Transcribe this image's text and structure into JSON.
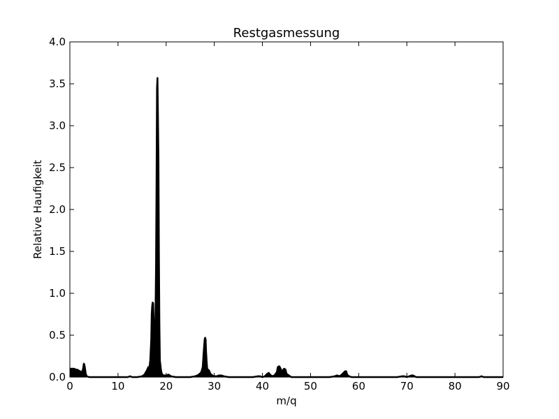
{
  "chart_data": {
    "type": "line",
    "title": "Restgasmessung",
    "xlabel": "m/q",
    "ylabel": "Relative Haufigkeit",
    "xlim": [
      0,
      90
    ],
    "ylim": [
      0,
      4.0
    ],
    "xticks": [
      "0",
      "10",
      "20",
      "30",
      "40",
      "50",
      "60",
      "70",
      "80",
      "90"
    ],
    "yticks": [
      "0.0",
      "0.5",
      "1.0",
      "1.5",
      "2.0",
      "2.5",
      "3.0",
      "3.5",
      "4.0"
    ],
    "grid": false,
    "legend": "none",
    "series_color": "#000000",
    "series": [
      {
        "x": [
          0.0,
          0.3,
          0.6,
          0.9,
          1.2,
          1.5,
          1.8,
          2.1,
          2.4,
          2.7,
          2.8,
          2.9,
          3.0,
          3.1,
          3.2,
          3.3,
          3.5,
          4.0,
          5.0,
          8.0,
          10.0,
          12.0,
          12.5,
          13.0,
          14.0,
          15.0,
          15.5,
          16.0,
          16.3,
          16.5,
          16.7,
          16.9,
          17.0,
          17.1,
          17.2,
          17.3,
          17.4,
          17.5,
          17.6,
          17.7,
          17.8,
          17.9,
          18.0,
          18.1,
          18.2,
          18.3,
          18.4,
          18.5,
          18.6,
          18.7,
          18.8,
          18.9,
          19.0,
          19.2,
          19.5,
          20.0,
          20.5,
          21.0,
          22.0,
          25.0,
          26.0,
          26.5,
          27.0,
          27.3,
          27.6,
          27.8,
          28.0,
          28.1,
          28.2,
          28.3,
          28.4,
          28.5,
          28.6,
          28.7,
          28.9,
          29.2,
          29.6,
          30.0,
          30.5,
          31.0,
          31.5,
          32.0,
          33.0,
          38.0,
          39.0,
          39.5,
          40.0,
          40.5,
          41.0,
          41.3,
          41.6,
          42.0,
          42.5,
          43.0,
          43.2,
          43.5,
          43.8,
          44.0,
          44.2,
          44.5,
          44.8,
          45.0,
          45.5,
          46.0,
          50.0,
          54.0,
          55.0,
          55.5,
          56.0,
          56.5,
          57.0,
          57.2,
          57.4,
          57.6,
          58.0,
          58.5,
          60.0,
          68.0,
          69.0,
          69.5,
          70.0,
          70.5,
          71.0,
          71.3,
          71.6,
          72.0,
          72.5,
          80.0,
          85.0,
          85.5,
          86.0,
          90.0
        ],
        "y": [
          0.1,
          0.1,
          0.1,
          0.1,
          0.09,
          0.09,
          0.08,
          0.07,
          0.05,
          0.09,
          0.12,
          0.16,
          0.15,
          0.12,
          0.08,
          0.04,
          0.01,
          0.0,
          0.0,
          0.0,
          0.0,
          0.0,
          0.01,
          0.0,
          0.0,
          0.01,
          0.03,
          0.08,
          0.12,
          0.1,
          0.2,
          0.45,
          0.75,
          0.85,
          0.89,
          0.88,
          0.7,
          0.5,
          0.45,
          0.3,
          0.8,
          1.35,
          2.3,
          3.45,
          3.57,
          3.1,
          2.62,
          1.45,
          0.63,
          0.2,
          0.15,
          0.1,
          0.06,
          0.03,
          0.02,
          0.02,
          0.03,
          0.01,
          0.0,
          0.0,
          0.01,
          0.02,
          0.04,
          0.06,
          0.12,
          0.3,
          0.45,
          0.47,
          0.45,
          0.3,
          0.2,
          0.12,
          0.07,
          0.09,
          0.08,
          0.04,
          0.02,
          0.01,
          0.01,
          0.02,
          0.02,
          0.01,
          0.0,
          0.0,
          0.01,
          0.01,
          0.0,
          0.01,
          0.04,
          0.05,
          0.03,
          0.01,
          0.02,
          0.06,
          0.12,
          0.13,
          0.1,
          0.06,
          0.08,
          0.1,
          0.09,
          0.04,
          0.02,
          0.0,
          0.0,
          0.0,
          0.01,
          0.02,
          0.01,
          0.03,
          0.06,
          0.07,
          0.07,
          0.03,
          0.01,
          0.0,
          0.0,
          0.0,
          0.01,
          0.01,
          0.0,
          0.01,
          0.02,
          0.02,
          0.01,
          0.0,
          0.0,
          0.0,
          0.0,
          0.01,
          0.0,
          0.0
        ]
      }
    ]
  }
}
